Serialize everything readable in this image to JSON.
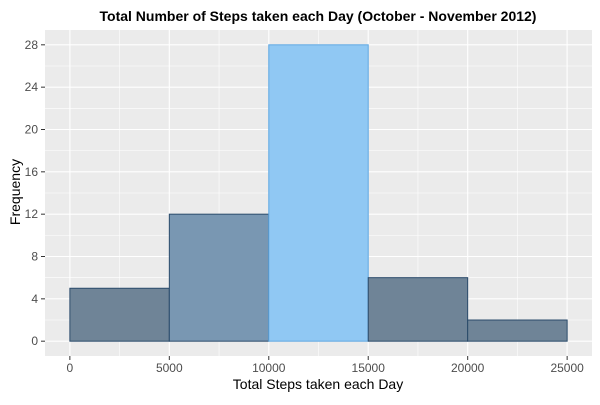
{
  "chart_data": {
    "type": "bar",
    "title": "Total Number of Steps taken each Day (October - November 2012)",
    "xlabel": "Total Steps taken each Day",
    "ylabel": "Frequency",
    "bins": [
      {
        "x0": 0,
        "x1": 5000,
        "value": 5
      },
      {
        "x0": 5000,
        "x1": 10000,
        "value": 12
      },
      {
        "x0": 10000,
        "x1": 15000,
        "value": 28
      },
      {
        "x0": 15000,
        "x1": 20000,
        "value": 6
      },
      {
        "x0": 20000,
        "x1": 25000,
        "value": 2
      }
    ],
    "xlim": [
      -1250,
      26250
    ],
    "ylim": [
      -1.4,
      29.4
    ],
    "x_ticks": [
      0,
      5000,
      10000,
      15000,
      20000,
      25000
    ],
    "x_tick_labels": [
      "0",
      "5000",
      "10000",
      "15000",
      "20000",
      "25000"
    ],
    "y_ticks": [
      0,
      4,
      8,
      12,
      16,
      20,
      24,
      28
    ],
    "y_tick_labels": [
      "0",
      "4",
      "8",
      "12",
      "16",
      "20",
      "24",
      "28"
    ],
    "grid": true,
    "colors": {
      "panel_bg": "#EBEBEB",
      "grid": "#FFFFFF",
      "bar_fill": "#6F8497",
      "bar_fill_mid": "#7997B2",
      "bar_fill_highlight": "#90C8F3",
      "bar_stroke": "#2A4A6A",
      "bar_stroke_highlight": "#5DA6E0"
    }
  }
}
